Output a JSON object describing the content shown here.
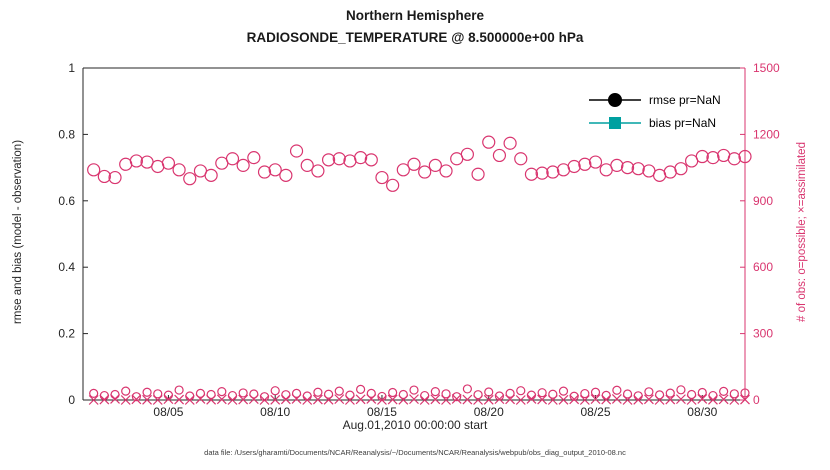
{
  "title": {
    "line1": "Northern Hemisphere",
    "line2": "RADIOSONDE_TEMPERATURE @ 8.500000e+00 hPa"
  },
  "axes": {
    "left": {
      "label": "rmse and bias (model - observation)",
      "ticks": [
        0,
        0.2,
        0.4,
        0.6,
        0.8,
        1
      ],
      "tick_labels": [
        "0",
        "0.2",
        "0.4",
        "0.6",
        "0.8",
        "1"
      ],
      "range": [
        0,
        1
      ],
      "color": "#262626"
    },
    "right": {
      "label": "# of obs: o=possible; ×=assimilated",
      "ticks": [
        0,
        300,
        600,
        900,
        1200,
        1500
      ],
      "tick_labels": [
        "0",
        "300",
        "600",
        "900",
        "1200",
        "1500"
      ],
      "range": [
        0,
        1500
      ],
      "color": "#d9356f"
    },
    "x": {
      "label": "Aug.01,2010 00:00:00 start",
      "tick_labels": [
        "08/05",
        "08/10",
        "08/15",
        "08/20",
        "08/25",
        "08/30"
      ],
      "tick_days": [
        4,
        9,
        14,
        19,
        24,
        29
      ],
      "range_days": [
        0,
        31
      ]
    }
  },
  "legend": [
    {
      "label": "rmse pr=NaN",
      "color": "#000000",
      "marker": "circle"
    },
    {
      "label": "bias pr=NaN",
      "color": "#00a0a0",
      "marker": "square"
    }
  ],
  "caption": "data file: /Users/gharamti/Documents/NCAR/Reanalysis/~/Documents/NCAR/Reanalysis/webpub/obs_diag_output_2010-08.nc",
  "chart_data": {
    "type": "scatter",
    "title": "Northern Hemisphere — RADIOSONDE_TEMPERATURE @ 8.500000e+00 hPa",
    "xlabel": "Aug.01,2010 00:00:00 start",
    "ylabel_left": "rmse and bias (model - observation)",
    "ylabel_right": "# of obs: o=possible; ×=assimilated",
    "ylim_left": [
      0,
      1
    ],
    "ylim_right": [
      0,
      1500
    ],
    "grid": false,
    "legend_position": "top-right-inside",
    "x_days": [
      0.5,
      1,
      1.5,
      2,
      2.5,
      3,
      3.5,
      4,
      4.5,
      5,
      5.5,
      6,
      6.5,
      7,
      7.5,
      8,
      8.5,
      9,
      9.5,
      10,
      10.5,
      11,
      11.5,
      12,
      12.5,
      13,
      13.5,
      14,
      14.5,
      15,
      15.5,
      16,
      16.5,
      17,
      17.5,
      18,
      18.5,
      19,
      19.5,
      20,
      20.5,
      21,
      21.5,
      22,
      22.5,
      23,
      23.5,
      24,
      24.5,
      25,
      25.5,
      26,
      26.5,
      27,
      27.5,
      28,
      28.5,
      29,
      29.5,
      30,
      30.5,
      31
    ],
    "series": [
      {
        "name": "obs-possible-count",
        "axis": "right",
        "marker": "circle-open",
        "size": 6,
        "color": "#d9356f",
        "values": [
          1040,
          1010,
          1005,
          1065,
          1080,
          1075,
          1055,
          1070,
          1040,
          1000,
          1035,
          1015,
          1070,
          1090,
          1060,
          1095,
          1030,
          1040,
          1015,
          1125,
          1060,
          1035,
          1085,
          1090,
          1080,
          1095,
          1085,
          1005,
          970,
          1040,
          1065,
          1030,
          1060,
          1035,
          1090,
          1110,
          1020,
          1165,
          1105,
          1160,
          1090,
          1020,
          1025,
          1030,
          1040,
          1055,
          1065,
          1075,
          1040,
          1060,
          1050,
          1045,
          1035,
          1015,
          1030,
          1045,
          1080,
          1100,
          1095,
          1105,
          1090,
          1100
        ]
      },
      {
        "name": "obs-possible-count-low",
        "axis": "right",
        "marker": "circle-open",
        "size": 4,
        "color": "#d9356f",
        "values": [
          30,
          20,
          25,
          40,
          15,
          35,
          28,
          22,
          45,
          18,
          30,
          25,
          38,
          20,
          32,
          27,
          15,
          42,
          24,
          30,
          18,
          35,
          26,
          40,
          22,
          48,
          30,
          16,
          34,
          25,
          45,
          20,
          38,
          28,
          15,
          50,
          24,
          36,
          18,
          30,
          42,
          22,
          33,
          26,
          40,
          17,
          29,
          35,
          21,
          44,
          27,
          19,
          37,
          23,
          31,
          46,
          25,
          34,
          20,
          39,
          28,
          32
        ]
      },
      {
        "name": "obs-assimilated-count",
        "axis": "right",
        "marker": "x",
        "size": 4.5,
        "color": "#d9356f",
        "values": [
          0,
          2,
          5,
          0,
          3,
          1,
          0,
          4,
          2,
          0,
          5,
          1,
          3,
          0,
          2,
          4,
          0,
          1,
          3,
          5,
          0,
          2,
          1,
          4,
          0,
          3,
          5,
          0,
          2,
          1,
          4,
          0,
          3,
          0,
          5,
          2,
          0,
          1,
          4,
          3,
          0,
          5,
          2,
          0,
          1,
          3,
          0,
          4,
          2,
          5,
          0,
          1,
          3,
          0,
          2,
          4,
          0,
          5,
          1,
          3,
          0,
          2
        ]
      }
    ]
  }
}
